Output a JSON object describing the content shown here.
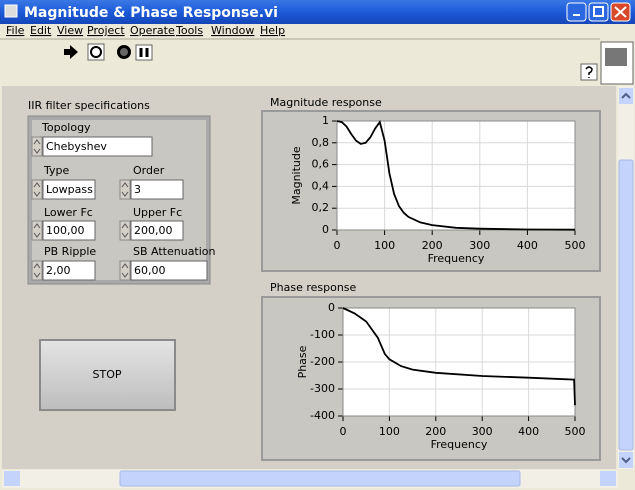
{
  "window": {
    "title": "Magnitude & Phase Response.vi"
  },
  "menu": [
    "File",
    "Edit",
    "View",
    "Project",
    "Operate",
    "Tools",
    "Window",
    "Help"
  ],
  "specs": {
    "title": "IIR filter specifications",
    "fields": [
      {
        "label": "Topology",
        "value": "Chebyshev"
      },
      {
        "label": "Type",
        "value": "Lowpass"
      },
      {
        "label": "Order",
        "value": "3"
      },
      {
        "label": "Lower Fc",
        "value": "100,00"
      },
      {
        "label": "Upper Fc",
        "value": "200,00"
      },
      {
        "label": "PB Ripple",
        "value": "2,00"
      },
      {
        "label": "SB Attenuation",
        "value": "60,00"
      }
    ]
  },
  "stop_button": "STOP",
  "charts": [
    {
      "type": "line",
      "title": "Magnitude response",
      "x_label": "Frequency",
      "y_label": "Magnitude",
      "color": "#000000",
      "grid": true,
      "xlim": [
        0,
        500
      ],
      "ylim": [
        0,
        1
      ],
      "xticks": [
        0,
        100,
        200,
        300,
        400,
        500
      ],
      "yticks": [
        0,
        {
          "value": 0.2,
          "label": "0,2"
        },
        {
          "value": 0.4,
          "label": "0,4"
        },
        {
          "value": 0.6,
          "label": "0,6"
        },
        {
          "value": 0.8,
          "label": "0,8"
        },
        1
      ],
      "x": [
        0,
        10,
        20,
        30,
        40,
        50,
        60,
        70,
        80,
        90,
        100,
        110,
        120,
        130,
        140,
        150,
        175,
        200,
        250,
        300,
        400,
        500
      ],
      "values": [
        1,
        0.99,
        0.95,
        0.88,
        0.82,
        0.79,
        0.8,
        0.85,
        0.93,
        0.99,
        0.82,
        0.52,
        0.33,
        0.22,
        0.16,
        0.12,
        0.07,
        0.045,
        0.02,
        0.012,
        0.005,
        0.003
      ]
    },
    {
      "type": "line",
      "title": "Phase response",
      "x_label": "Frequency",
      "y_label": "Phase",
      "color": "#000000",
      "grid": true,
      "xlim": [
        0,
        500
      ],
      "ylim": [
        -400,
        0
      ],
      "xticks": [
        0,
        100,
        200,
        300,
        400,
        500
      ],
      "yticks": [
        -400,
        -300,
        -200,
        -100,
        0
      ],
      "x": [
        0,
        25,
        50,
        75,
        90,
        100,
        125,
        150,
        200,
        300,
        400,
        498,
        500
      ],
      "values": [
        0,
        -20,
        -50,
        -110,
        -170,
        -190,
        -215,
        -228,
        -240,
        -252,
        -258,
        -265,
        -360
      ]
    }
  ]
}
